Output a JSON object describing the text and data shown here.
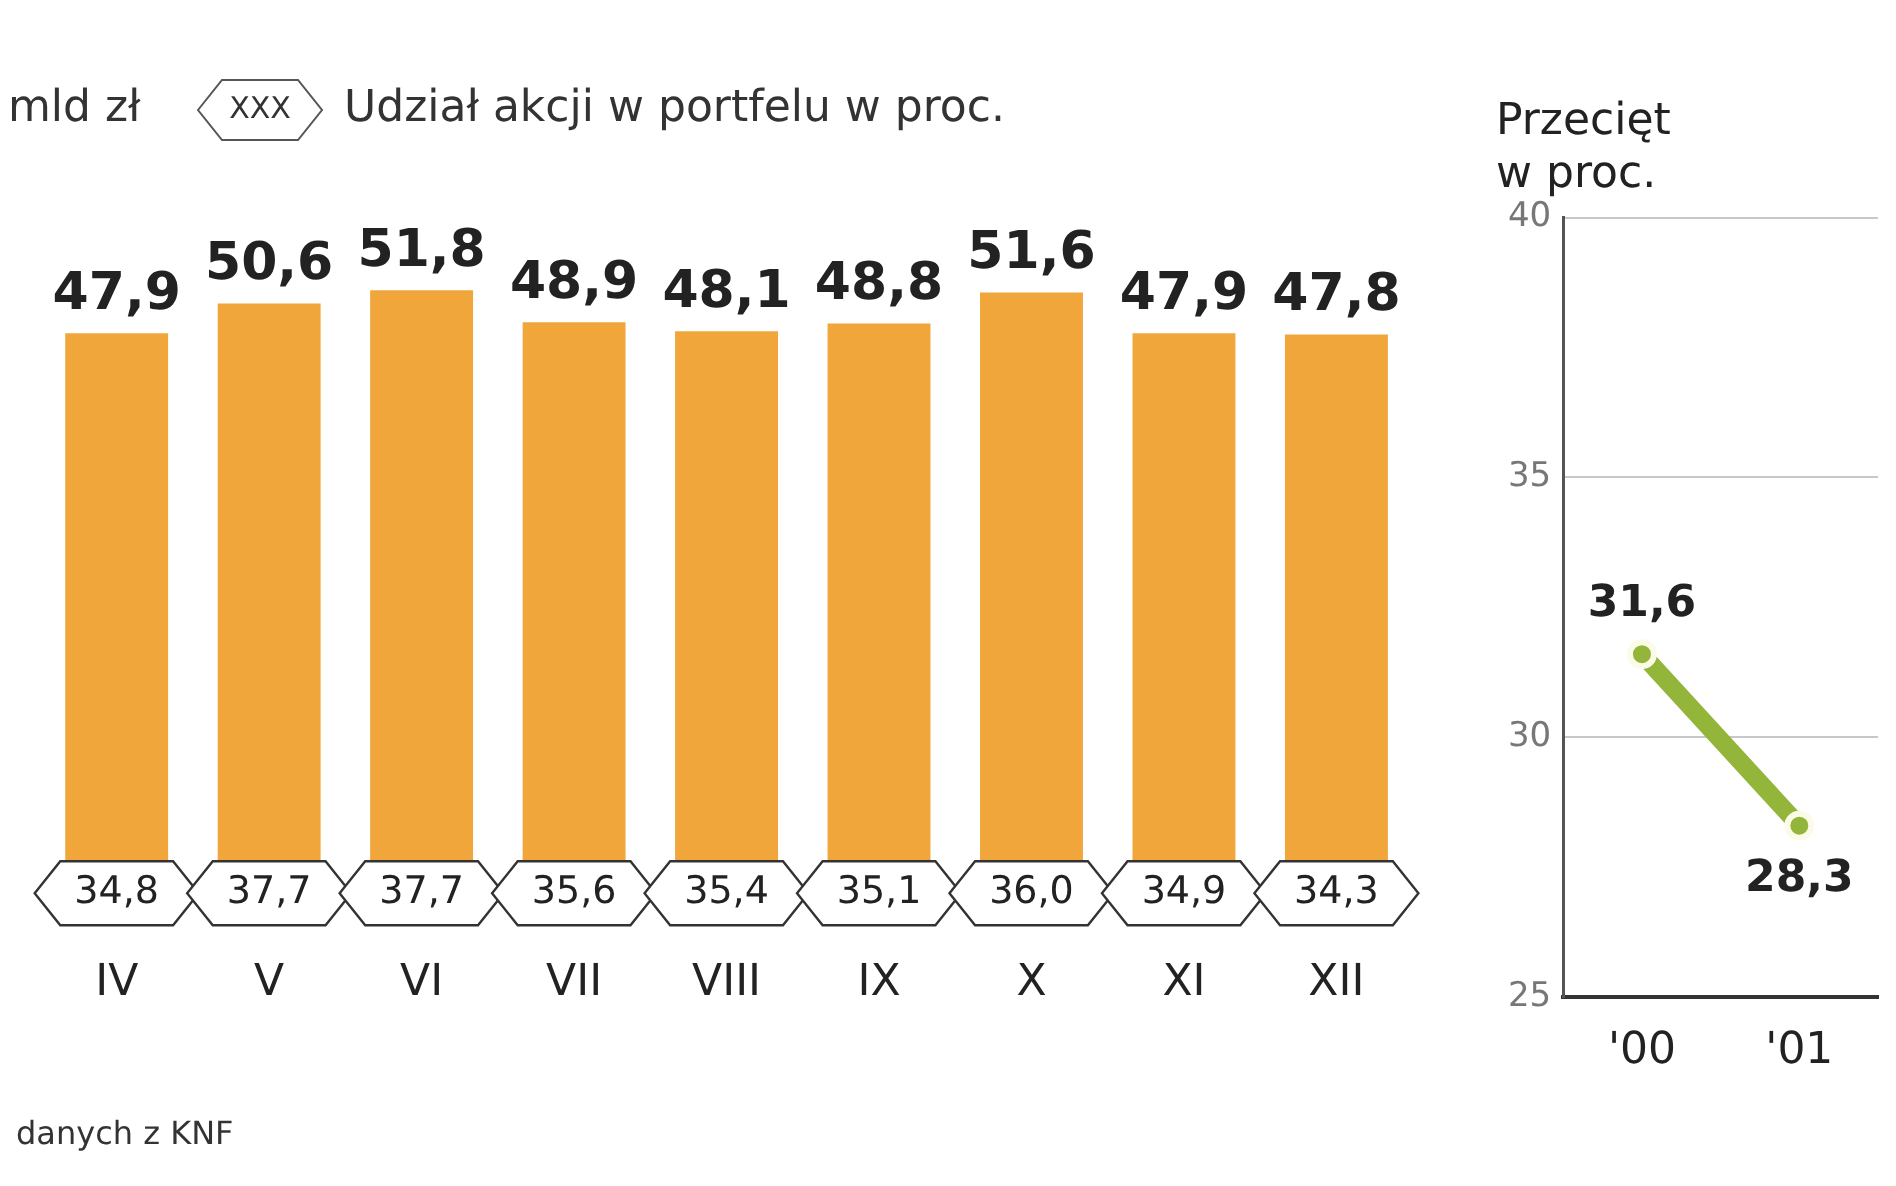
{
  "chart_data": [
    {
      "type": "bar",
      "ylabel": "mld zł",
      "categories": [
        "IV",
        "V",
        "VI",
        "VII",
        "VIII",
        "IX",
        "X",
        "XI",
        "XII"
      ],
      "series": [
        {
          "color": "#f0a63a",
          "values": [
            47.9,
            50.6,
            51.8,
            48.9,
            48.1,
            48.8,
            51.6,
            47.9,
            47.8
          ],
          "value_labels": [
            "47,9",
            "50,6",
            "51,8",
            "48,9",
            "48,1",
            "48,8",
            "51,6",
            "47,9",
            "47,8"
          ]
        }
      ],
      "tick_labels": "x",
      "annotations": [
        "XXX",
        "Udział akcji w portfelu w proc.",
        "danych z KNF",
        "34,8",
        "37,7",
        "37,7",
        "35,6",
        "35,4",
        "35,1",
        "36,0",
        "34,9",
        "34,3"
      ]
    },
    {
      "type": "line",
      "title": "Przecięt",
      "subtitle": "w proc.",
      "categories": [
        "'00",
        "'01"
      ],
      "series": [
        {
          "color": "#93b53a",
          "values": [
            31.6,
            28.3
          ],
          "value_labels": [
            "31,6",
            "28,3"
          ]
        }
      ],
      "ylim": [
        25,
        40
      ],
      "yticks": [
        25,
        30,
        35,
        40
      ],
      "grid": "y",
      "marker": "circle",
      "line_style": "solid"
    }
  ]
}
